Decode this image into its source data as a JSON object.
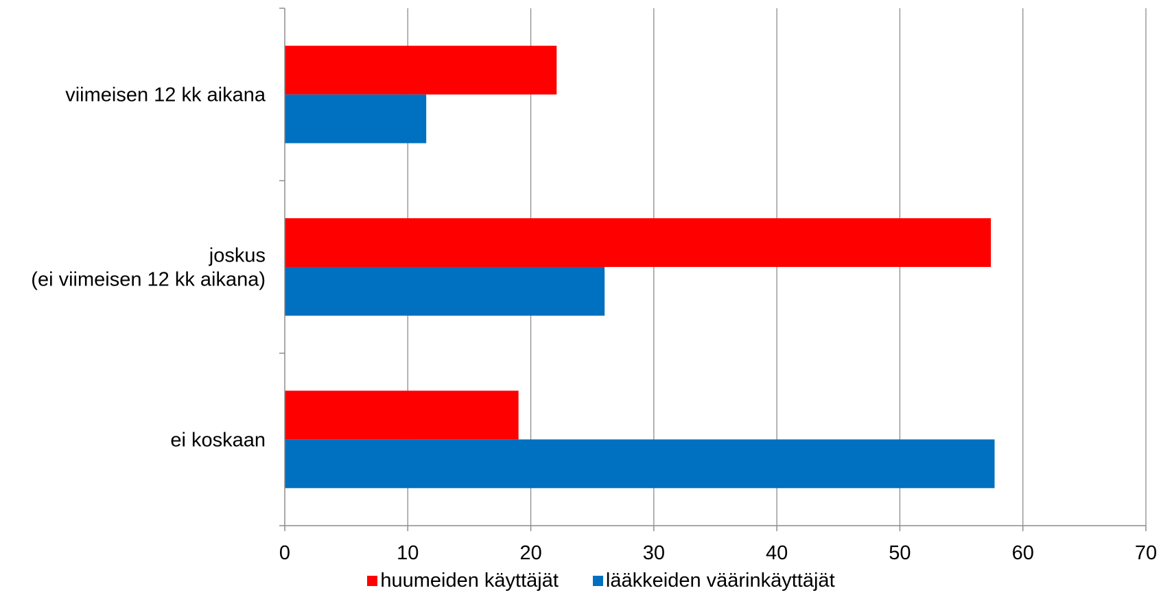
{
  "chart_data": {
    "type": "bar",
    "orientation": "horizontal",
    "categories": [
      [
        "viimeisen 12 kk aikana"
      ],
      [
        "joskus",
        "(ei viimeisen 12 kk aikana)"
      ],
      [
        "ei koskaan"
      ]
    ],
    "series": [
      {
        "name": "huumeiden käyttäjät",
        "color": "#ff0000",
        "values": [
          22.1,
          57.4,
          19.0
        ]
      },
      {
        "name": "lääkkeiden väärinkäyttäjät",
        "color": "#0070c0",
        "values": [
          11.5,
          26.0,
          57.7
        ]
      }
    ],
    "xlim": [
      0,
      70
    ],
    "xticks": [
      "0",
      "10",
      "20",
      "30",
      "40",
      "50",
      "60",
      "70"
    ],
    "grid": true,
    "legend_position": "bottom"
  }
}
